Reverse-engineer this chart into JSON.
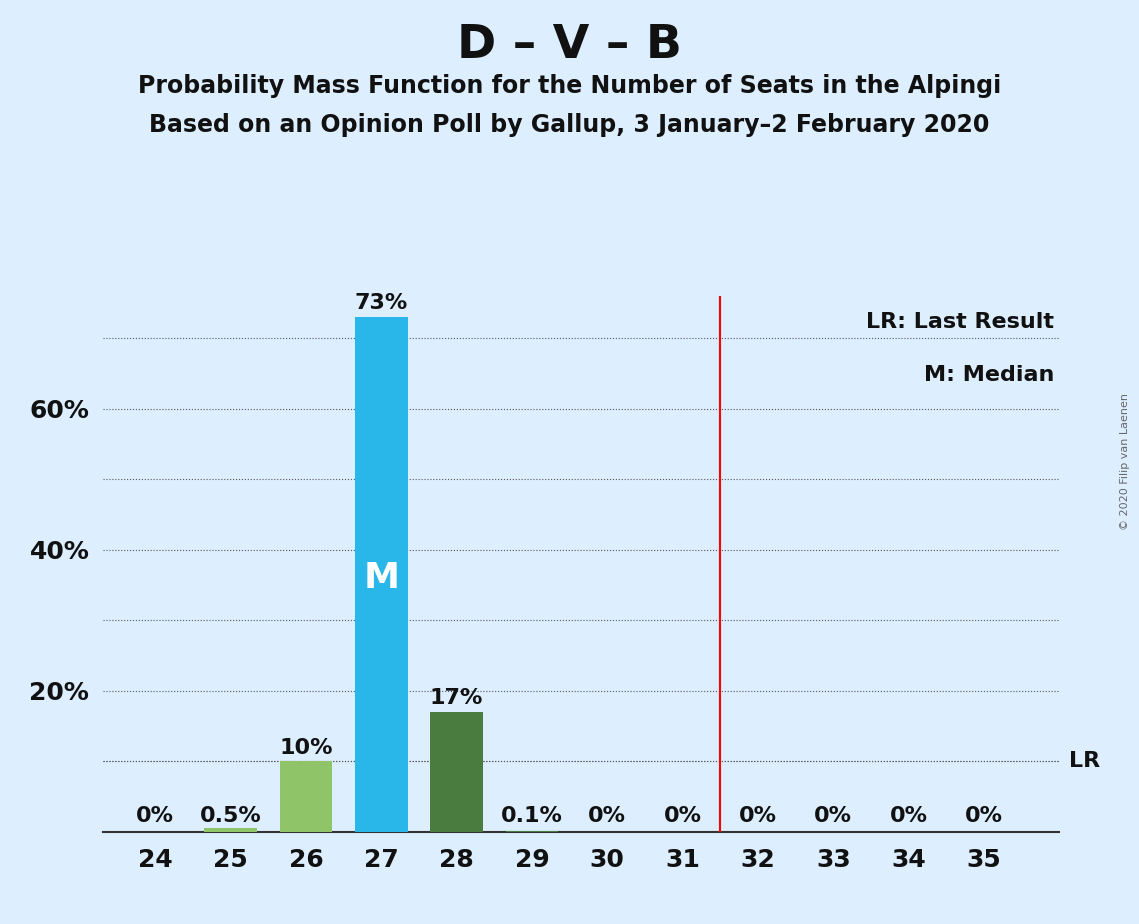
{
  "title": "D – V – B",
  "subtitle1": "Probability Mass Function for the Number of Seats in the Alpingi",
  "subtitle2": "Based on an Opinion Poll by Gallup, 3 January–2 February 2020",
  "copyright": "© 2020 Filip van Laenen",
  "seats": [
    24,
    25,
    26,
    27,
    28,
    29,
    30,
    31,
    32,
    33,
    34,
    35
  ],
  "probabilities": [
    0.0,
    0.5,
    10.0,
    73.0,
    17.0,
    0.1,
    0.0,
    0.0,
    0.0,
    0.0,
    0.0,
    0.0
  ],
  "bar_colors": [
    "#90c469",
    "#90c469",
    "#90c469",
    "#29b6e8",
    "#4a7c3f",
    "#4a7c3f",
    "#4a7c3f",
    "#4a7c3f",
    "#4a7c3f",
    "#4a7c3f",
    "#4a7c3f",
    "#4a7c3f"
  ],
  "median_seat": 27,
  "lr_seat": 31.5,
  "lr_value": 10.0,
  "background_color": "#ddeeff",
  "ylim": [
    0,
    76
  ],
  "solid_yticks": [
    20,
    40,
    60
  ],
  "dotted_yticks": [
    10,
    30,
    50,
    70
  ],
  "bar_label_fontsize": 16,
  "tick_fontsize": 18,
  "title_fontsize": 34,
  "subtitle_fontsize": 17,
  "annotation_fontsize": 16,
  "copyright_fontsize": 8
}
